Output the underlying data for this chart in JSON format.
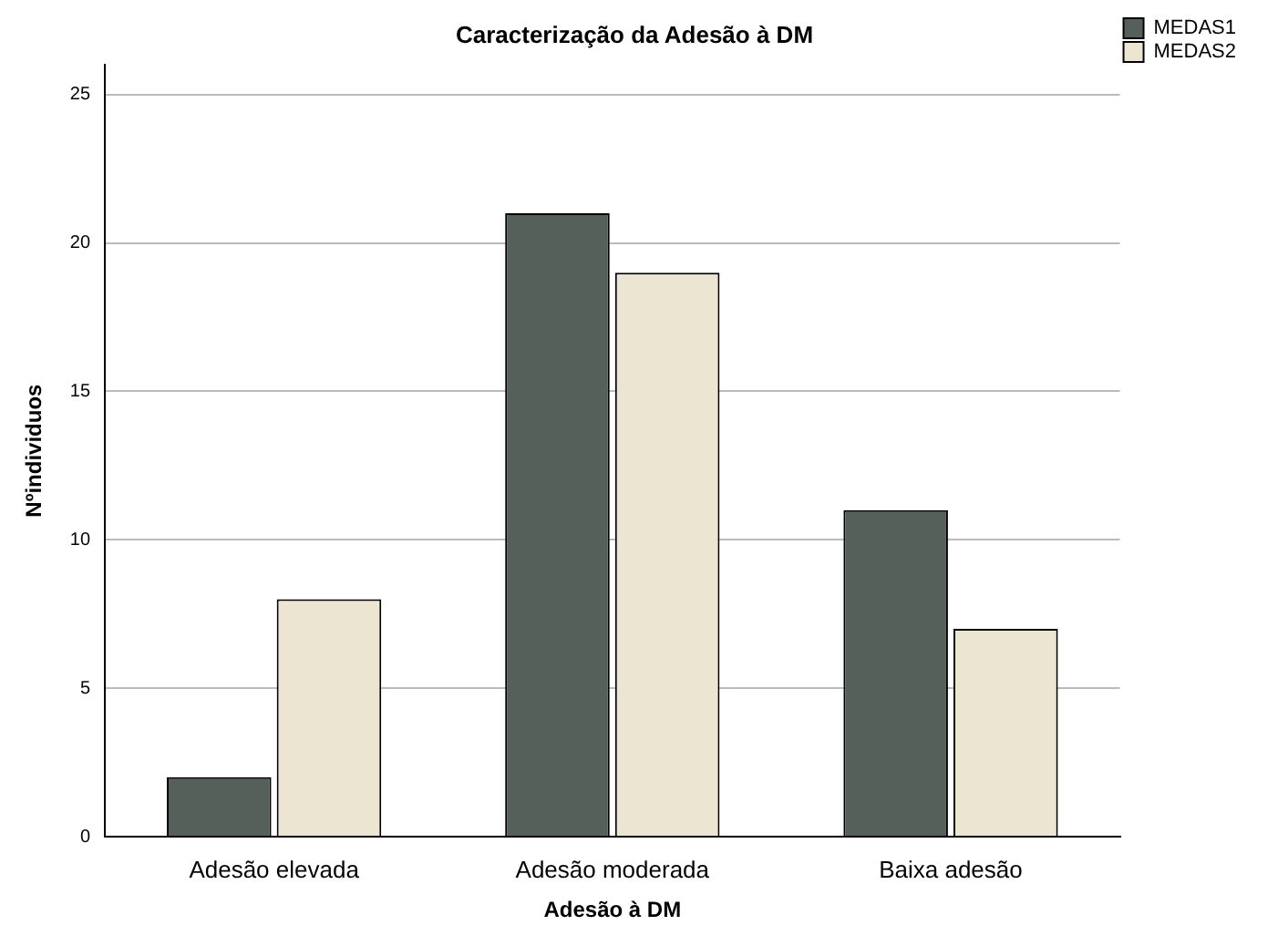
{
  "chart_data": {
    "type": "bar",
    "title": "Caracterização da Adesão à DM",
    "xlabel": "Adesão à DM",
    "ylabel": "Nºindividuos",
    "categories": [
      "Adesão elevada",
      "Adesão moderada",
      "Baixa adesão"
    ],
    "series": [
      {
        "name": "MEDAS1",
        "color": "#56605a",
        "values": [
          2,
          21,
          11
        ]
      },
      {
        "name": "MEDAS2",
        "color": "#ebe5d2",
        "values": [
          8,
          19,
          7
        ]
      }
    ],
    "ylim": [
      0,
      26
    ],
    "yticks": [
      0,
      5,
      10,
      15,
      20,
      25
    ],
    "grid": "y",
    "legend": "top right"
  }
}
